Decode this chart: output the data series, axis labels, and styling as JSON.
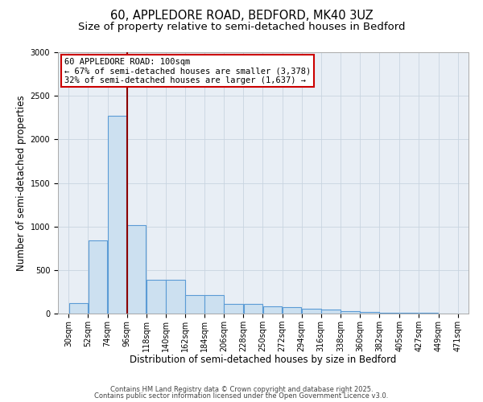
{
  "title_line1": "60, APPLEDORE ROAD, BEDFORD, MK40 3UZ",
  "title_line2": "Size of property relative to semi-detached houses in Bedford",
  "xlabel": "Distribution of semi-detached houses by size in Bedford",
  "ylabel": "Number of semi-detached properties",
  "annotation_title": "60 APPLEDORE ROAD: 100sqm",
  "annotation_line2": "← 67% of semi-detached houses are smaller (3,378)",
  "annotation_line3": "32% of semi-detached houses are larger (1,637) →",
  "footer_line1": "Contains HM Land Registry data © Crown copyright and database right 2025.",
  "footer_line2": "Contains public sector information licensed under the Open Government Licence v3.0.",
  "property_size": 100,
  "bin_edges": [
    30,
    52,
    74,
    96,
    118,
    140,
    162,
    184,
    206,
    228,
    250,
    272,
    294,
    316,
    338,
    360,
    382,
    405,
    427,
    449,
    471
  ],
  "bar_values": [
    120,
    840,
    2270,
    1020,
    390,
    390,
    215,
    215,
    110,
    110,
    80,
    70,
    55,
    50,
    30,
    15,
    10,
    5,
    5,
    3
  ],
  "ylim": [
    0,
    3000
  ],
  "yticks": [
    0,
    500,
    1000,
    1500,
    2000,
    2500,
    3000
  ],
  "bar_color": "#cce0f0",
  "bar_edge_color": "#5b9bd5",
  "vline_color": "#8b0000",
  "grid_color": "#c8d4e0",
  "bg_color": "#e8eef5",
  "annotation_box_color": "#cc0000",
  "title_fontsize": 10.5,
  "subtitle_fontsize": 9.5,
  "axis_label_fontsize": 8.5,
  "tick_fontsize": 7,
  "annotation_fontsize": 7.5,
  "footer_fontsize": 6
}
